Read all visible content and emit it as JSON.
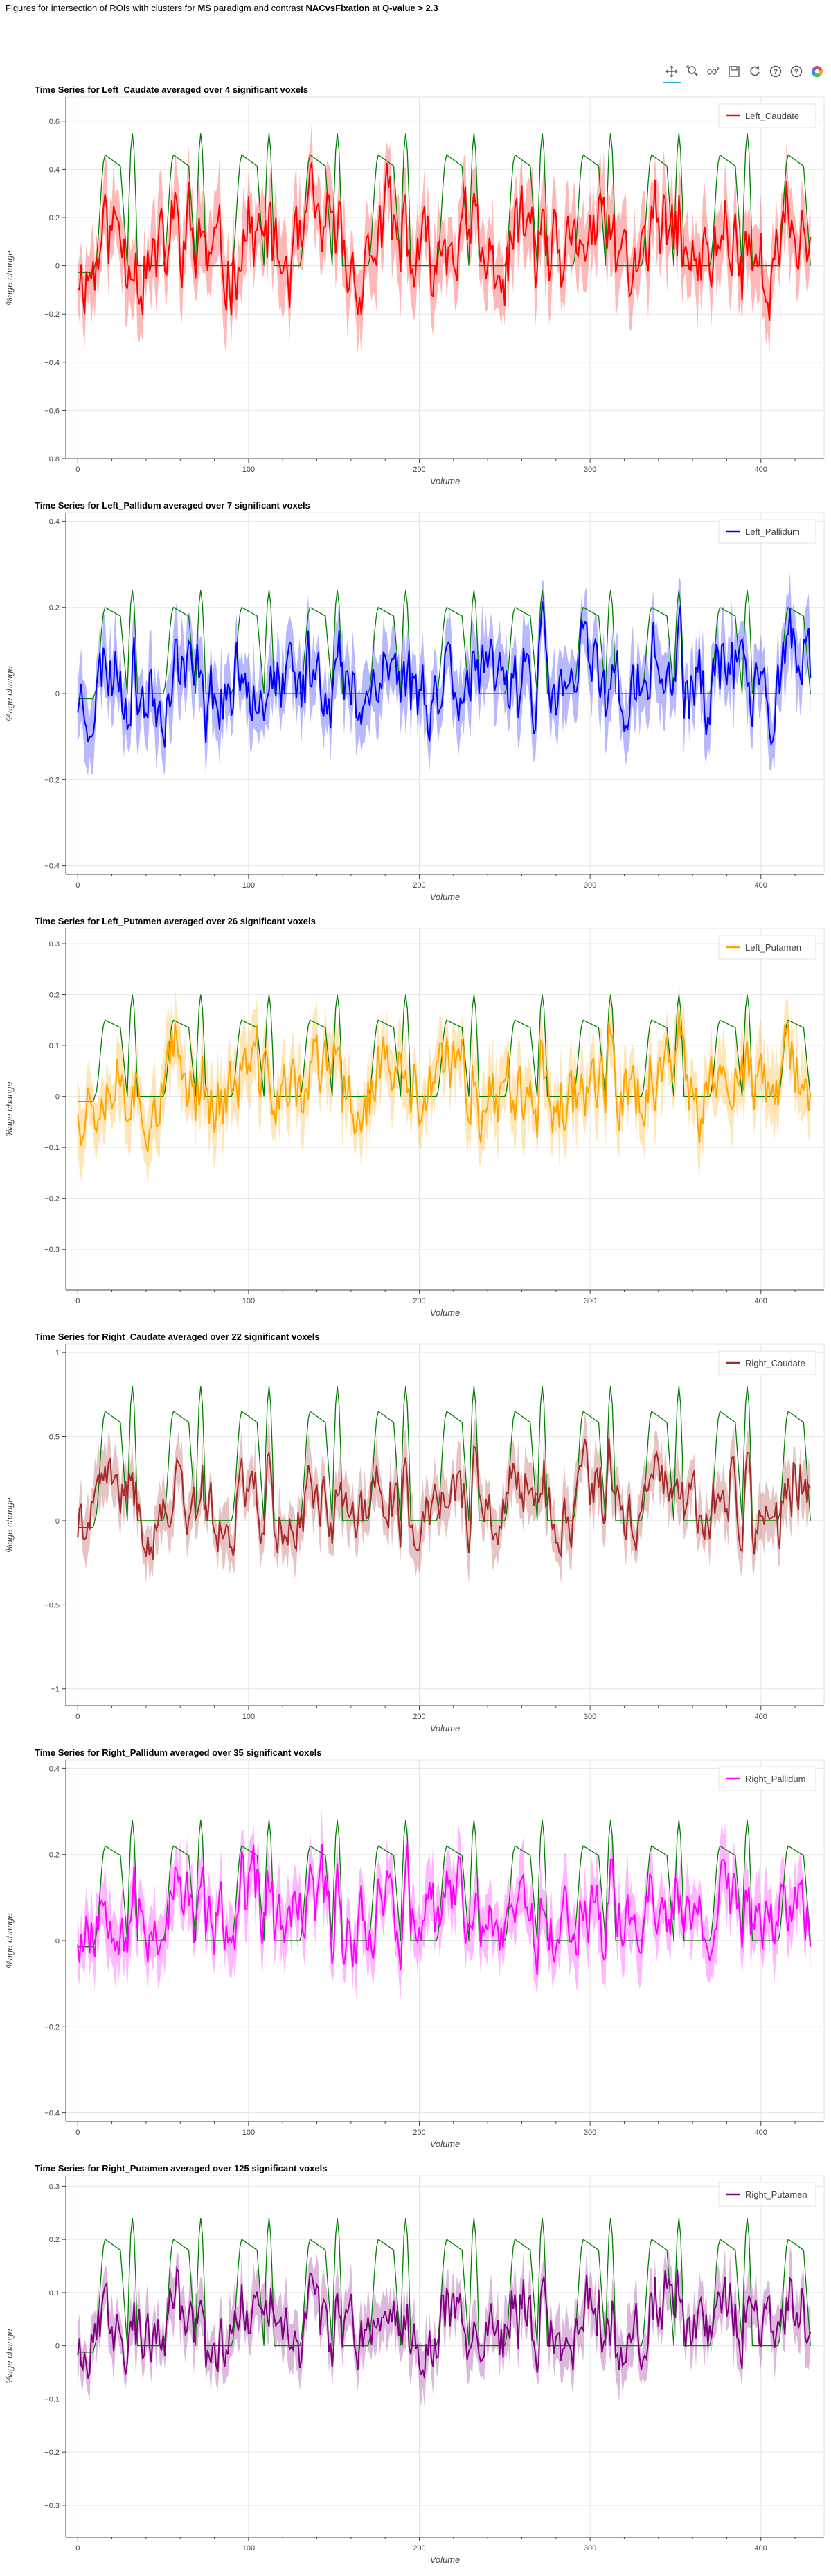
{
  "header": {
    "title_parts": [
      "Figures for intersection of ROIs with clusters for ",
      "MS",
      " paradigm and contrast ",
      "NACvsFixation",
      " at ",
      "Q-value > 2.3"
    ]
  },
  "toolbar": {
    "tools": [
      {
        "name": "pan-tool",
        "icon": "pan-icon",
        "active": true
      },
      {
        "name": "box-zoom-tool",
        "icon": "box-zoom-icon",
        "active": false
      },
      {
        "name": "wheel-zoom-tool",
        "icon": "wheel-zoom-icon",
        "active": false
      },
      {
        "name": "save-tool",
        "icon": "save-icon",
        "active": false
      },
      {
        "name": "reset-tool",
        "icon": "reset-icon",
        "active": false
      },
      {
        "name": "hover-tool",
        "icon": "hover-help-icon",
        "active": false
      },
      {
        "name": "help-tool",
        "icon": "help-icon",
        "active": false
      },
      {
        "name": "bokeh-logo",
        "icon": "bokeh-logo-icon",
        "active": false
      }
    ]
  },
  "chart_data": [
    {
      "type": "line",
      "title": "Time Series for Left_Caudate averaged over 4 significant voxels",
      "xlabel": "Volume",
      "ylabel": "%age change",
      "xlim": [
        -7,
        437
      ],
      "ylim": [
        -0.8,
        0.7
      ],
      "yticks": [
        -0.8,
        -0.6,
        -0.4,
        -0.2,
        0,
        0.2,
        0.4,
        0.6
      ],
      "xticks": [
        0,
        100,
        200,
        300,
        400
      ],
      "legend_placement": "top-right",
      "grid": true,
      "series": [
        {
          "name": "Left_Caudate",
          "color": "#ff0000",
          "band_color": "#ff0000",
          "n_points": 430,
          "amplitude": 0.22,
          "offset": 0.0,
          "noise_seed": 11
        },
        {
          "color": "#008000",
          "role": "model",
          "amp_pos": 0.46,
          "amp_neg": -0.55
        }
      ]
    },
    {
      "type": "line",
      "title": "Time Series for Left_Pallidum averaged over 7 significant voxels",
      "xlabel": "Volume",
      "ylabel": "%age change",
      "xlim": [
        -7,
        437
      ],
      "ylim": [
        -0.42,
        0.42
      ],
      "yticks": [
        -0.4,
        -0.2,
        0,
        0.2,
        0.4
      ],
      "xticks": [
        0,
        100,
        200,
        300,
        400
      ],
      "legend_placement": "top-right",
      "grid": true,
      "series": [
        {
          "name": "Left_Pallidum",
          "color": "#0000ff",
          "band_color": "#0000ff",
          "n_points": 430,
          "amplitude": 0.11,
          "offset": 0.0,
          "noise_seed": 23
        },
        {
          "color": "#008000",
          "role": "model",
          "amp_pos": 0.2,
          "amp_neg": -0.24
        }
      ]
    },
    {
      "type": "line",
      "title": "Time Series for Left_Putamen averaged over 26 significant voxels",
      "xlabel": "Volume",
      "ylabel": "%age change",
      "xlim": [
        -7,
        437
      ],
      "ylim": [
        -0.38,
        0.33
      ],
      "yticks": [
        -0.3,
        -0.2,
        -0.1,
        0,
        0.1,
        0.2,
        0.3
      ],
      "xticks": [
        0,
        100,
        200,
        300,
        400
      ],
      "legend_placement": "top-right",
      "grid": true,
      "series": [
        {
          "name": "Left_Putamen",
          "color": "#ffa500",
          "band_color": "#ffa500",
          "n_points": 430,
          "amplitude": 0.09,
          "offset": 0.0,
          "noise_seed": 37
        },
        {
          "color": "#008000",
          "role": "model",
          "amp_pos": 0.15,
          "amp_neg": -0.2
        }
      ]
    },
    {
      "type": "line",
      "title": "Time Series for Right_Caudate averaged over 22 significant voxels",
      "xlabel": "Volume",
      "ylabel": "%age change",
      "xlim": [
        -7,
        437
      ],
      "ylim": [
        -1.1,
        1.05
      ],
      "yticks": [
        -1,
        -0.5,
        0,
        0.5,
        1
      ],
      "xticks": [
        0,
        100,
        200,
        300,
        400
      ],
      "legend_placement": "top-right",
      "grid": true,
      "series": [
        {
          "name": "Right_Caudate",
          "color": "#a52a2a",
          "band_color": "#a52a2a",
          "n_points": 430,
          "amplitude": 0.22,
          "offset": 0.0,
          "noise_seed": 41
        },
        {
          "color": "#008000",
          "role": "model",
          "amp_pos": 0.65,
          "amp_neg": -0.8
        }
      ]
    },
    {
      "type": "line",
      "title": "Time Series for Right_Pallidum averaged over 35 significant voxels",
      "xlabel": "Volume",
      "ylabel": "%age change",
      "xlim": [
        -7,
        437
      ],
      "ylim": [
        -0.42,
        0.42
      ],
      "yticks": [
        -0.4,
        -0.2,
        0,
        0.2,
        0.4
      ],
      "xticks": [
        0,
        100,
        200,
        300,
        400
      ],
      "legend_placement": "top-right",
      "grid": true,
      "series": [
        {
          "name": "Right_Pallidum",
          "color": "#ff00ff",
          "band_color": "#ff00ff",
          "n_points": 430,
          "amplitude": 0.1,
          "offset": 0.03,
          "noise_seed": 53
        },
        {
          "color": "#008000",
          "role": "model",
          "amp_pos": 0.22,
          "amp_neg": -0.28
        }
      ]
    },
    {
      "type": "line",
      "title": "Time Series for Right_Putamen averaged over 125 significant voxels",
      "xlabel": "Volume",
      "ylabel": "%age change",
      "xlim": [
        -7,
        437
      ],
      "ylim": [
        -0.36,
        0.32
      ],
      "yticks": [
        -0.3,
        -0.2,
        -0.1,
        0,
        0.1,
        0.2,
        0.3
      ],
      "xticks": [
        0,
        100,
        200,
        300,
        400
      ],
      "legend_placement": "top-right",
      "grid": true,
      "series": [
        {
          "name": "Right_Putamen",
          "color": "#800080",
          "band_color": "#800080",
          "n_points": 430,
          "amplitude": 0.07,
          "offset": 0.01,
          "noise_seed": 67
        },
        {
          "color": "#008000",
          "role": "model",
          "amp_pos": 0.2,
          "amp_neg": -0.24
        }
      ]
    }
  ]
}
